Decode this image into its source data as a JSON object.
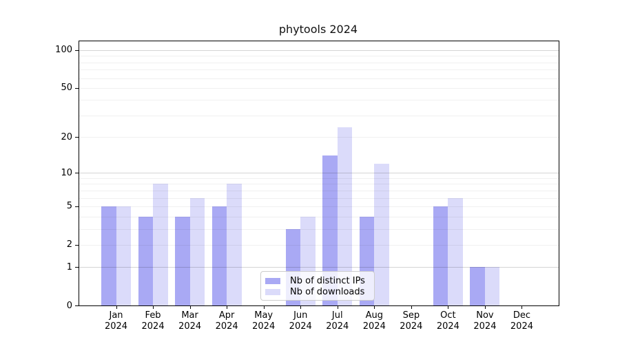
{
  "window": {
    "title": "phytools 2024"
  },
  "chart_data": {
    "type": "bar",
    "title": "phytools 2024",
    "categories": [
      "Jan",
      "Feb",
      "Mar",
      "Apr",
      "May",
      "Jun",
      "Jul",
      "Aug",
      "Sep",
      "Oct",
      "Nov",
      "Dec"
    ],
    "x_tick_second_line": "2024",
    "series": [
      {
        "name": "Nb of distinct IPs",
        "color": "#a9a9f4",
        "values": [
          5,
          4,
          4,
          5,
          0,
          3,
          14,
          4,
          0,
          5,
          1,
          0
        ]
      },
      {
        "name": "Nb of downloads",
        "color": "#dbdbfa",
        "values": [
          5,
          8,
          6,
          8,
          0,
          4,
          24,
          12,
          0,
          6,
          1,
          0
        ]
      }
    ],
    "xlabel": "",
    "ylabel": "",
    "y_scale": "log10(value+1)",
    "y_ticks": [
      0,
      1,
      2,
      5,
      10,
      20,
      50,
      100
    ],
    "ylim": [
      0,
      117.7
    ],
    "grid": {
      "major": [
        1,
        10,
        100
      ],
      "minor": [
        2,
        3,
        4,
        5,
        6,
        7,
        8,
        9,
        20,
        30,
        40,
        50,
        60,
        70,
        80,
        90
      ]
    },
    "legend": {
      "position": "lower-center",
      "items": [
        "Nb of distinct IPs",
        "Nb of downloads"
      ]
    },
    "colors": {
      "bar_distinct_ips": "#a9a9f4",
      "bar_downloads": "#dbdbfa",
      "axis": "#000000",
      "legend_border": "#cccccc"
    }
  }
}
